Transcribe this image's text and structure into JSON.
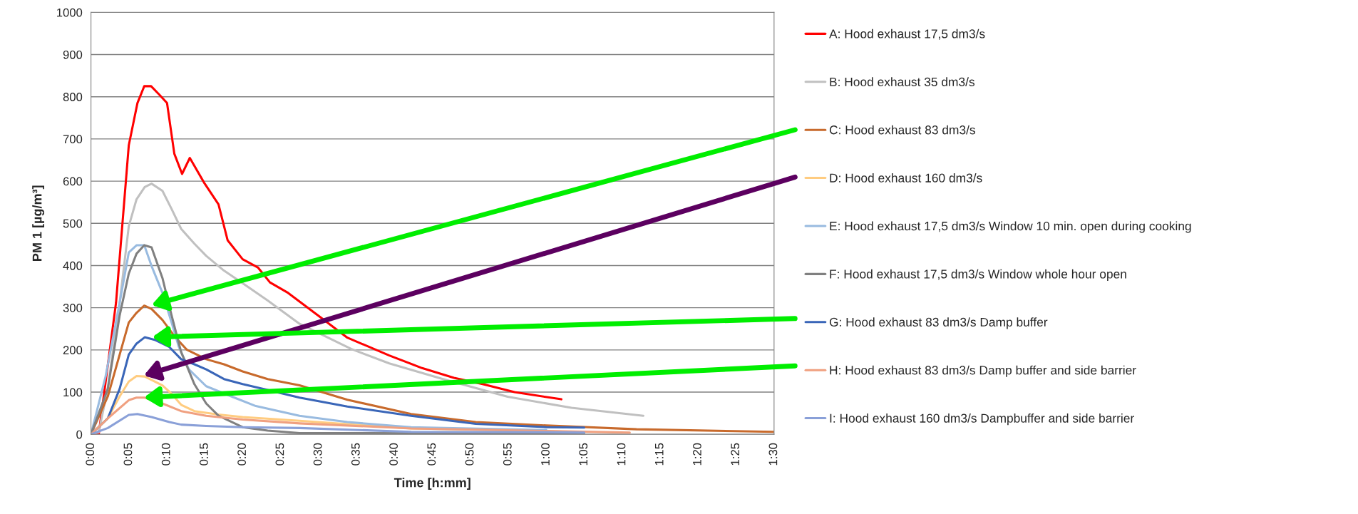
{
  "chart_data": {
    "type": "line",
    "xlabel": "Time [h:mm]",
    "ylabel": "PM 1 [µg/m³]",
    "xlim": [
      0,
      1.5
    ],
    "ylim": [
      0,
      1000
    ],
    "yticks": [
      0,
      100,
      200,
      300,
      400,
      500,
      600,
      700,
      800,
      900,
      1000
    ],
    "xticks": [
      {
        "value": 0,
        "label": "0:00"
      },
      {
        "value": 0.0833,
        "label": "0:05"
      },
      {
        "value": 0.1667,
        "label": "0:10"
      },
      {
        "value": 0.25,
        "label": "0:15"
      },
      {
        "value": 0.3333,
        "label": "0:20"
      },
      {
        "value": 0.4167,
        "label": "0:25"
      },
      {
        "value": 0.5,
        "label": "0:30"
      },
      {
        "value": 0.5833,
        "label": "0:35"
      },
      {
        "value": 0.6667,
        "label": "0:40"
      },
      {
        "value": 0.75,
        "label": "0:45"
      },
      {
        "value": 0.8333,
        "label": "0:50"
      },
      {
        "value": 0.9167,
        "label": "0:55"
      },
      {
        "value": 1.0,
        "label": "1:00"
      },
      {
        "value": 1.0833,
        "label": "1:05"
      },
      {
        "value": 1.1667,
        "label": "1:10"
      },
      {
        "value": 1.25,
        "label": "1:15"
      },
      {
        "value": 1.3333,
        "label": "1:20"
      },
      {
        "value": 1.4167,
        "label": "1:25"
      },
      {
        "value": 1.5,
        "label": "1:30"
      }
    ],
    "grid": "y",
    "legend": "right",
    "marker": "none",
    "line_style": "solid",
    "series": [
      {
        "name": "A: Hood exhaust 17,5 dm3/s",
        "color": "#ff0000",
        "x": [
          0,
          0.017,
          0.055,
          0.083,
          0.102,
          0.117,
          0.132,
          0.15,
          0.167,
          0.183,
          0.2,
          0.217,
          0.248,
          0.28,
          0.3,
          0.333,
          0.367,
          0.393,
          0.433,
          0.508,
          0.563,
          0.655,
          0.727,
          0.797,
          0.86,
          0.93,
          1.033
        ],
        "values": [
          0,
          0,
          312,
          685,
          785,
          825,
          825,
          805,
          785,
          665,
          617,
          655,
          597,
          545,
          460,
          415,
          395,
          360,
          335,
          274,
          229,
          187,
          157,
          134,
          119,
          100,
          83
        ]
      },
      {
        "name": "B: Hood exhaust 35 dm3/s",
        "color": "#c0c0c0",
        "x": [
          0,
          0.017,
          0.037,
          0.063,
          0.083,
          0.1,
          0.118,
          0.133,
          0.157,
          0.177,
          0.198,
          0.227,
          0.253,
          0.292,
          0.333,
          0.388,
          0.458,
          0.572,
          0.655,
          0.773,
          0.915,
          1.055,
          1.213
        ],
        "values": [
          0,
          5,
          110,
          312,
          493,
          557,
          586,
          594,
          577,
          534,
          487,
          452,
          423,
          388,
          358,
          317,
          262,
          202,
          168,
          131,
          89,
          63,
          44
        ]
      },
      {
        "name": "C: Hood exhaust 83 dm3/s",
        "color": "#c86a2c",
        "x": [
          0,
          0.037,
          0.083,
          0.1,
          0.117,
          0.133,
          0.157,
          0.183,
          0.21,
          0.253,
          0.292,
          0.333,
          0.388,
          0.458,
          0.563,
          0.703,
          0.845,
          1.0,
          1.198,
          1.5
        ],
        "values": [
          0,
          90,
          265,
          288,
          305,
          297,
          271,
          233,
          201,
          178,
          166,
          149,
          131,
          116,
          82,
          48,
          29,
          21,
          12,
          6
        ]
      },
      {
        "name": "D: Hood exhaust 160 dm3/s",
        "color": "#ffcc80",
        "x": [
          0,
          0.037,
          0.063,
          0.083,
          0.1,
          0.118,
          0.157,
          0.177,
          0.198,
          0.227,
          0.28,
          0.333,
          0.458,
          0.703,
          1.0,
          1.062
        ],
        "values": [
          0,
          38,
          90,
          125,
          138,
          137,
          116,
          96,
          70,
          55,
          47,
          41,
          32,
          14,
          8,
          5
        ]
      },
      {
        "name": "E: Hood exhaust 17,5 dm3/s Window 10 min. open during cooking",
        "color": "#99bbe0",
        "x": [
          0,
          0.032,
          0.063,
          0.083,
          0.1,
          0.117,
          0.133,
          0.157,
          0.177,
          0.193,
          0.215,
          0.253,
          0.308,
          0.362,
          0.458,
          0.563,
          0.703,
          1.0
        ],
        "values": [
          0,
          137,
          312,
          431,
          448,
          448,
          399,
          335,
          265,
          207,
          154,
          114,
          90,
          67,
          44,
          29,
          17,
          10
        ]
      },
      {
        "name": "F: Hood exhaust 17,5 dm3/s Window whole hour open",
        "color": "#808080",
        "x": [
          0,
          0.037,
          0.063,
          0.083,
          0.1,
          0.117,
          0.133,
          0.157,
          0.177,
          0.198,
          0.227,
          0.253,
          0.28,
          0.333,
          0.388,
          0.458,
          1.083
        ],
        "values": [
          0,
          108,
          282,
          381,
          428,
          448,
          443,
          370,
          282,
          195,
          119,
          73,
          44,
          17,
          9,
          3,
          2
        ]
      },
      {
        "name": "G: Hood exhaust 83 dm3/s Damp buffer",
        "color": "#3a66b8",
        "x": [
          0,
          0.037,
          0.063,
          0.083,
          0.1,
          0.118,
          0.14,
          0.172,
          0.198,
          0.227,
          0.253,
          0.292,
          0.333,
          0.388,
          0.458,
          0.563,
          0.703,
          0.845,
          1.0,
          1.083
        ],
        "values": [
          0,
          38,
          108,
          189,
          215,
          230,
          224,
          207,
          178,
          166,
          154,
          131,
          119,
          105,
          87,
          66,
          44,
          25,
          17,
          16
        ]
      },
      {
        "name": "H: Hood exhaust 83 dm3/s Damp buffer and side barrier",
        "color": "#f0a080",
        "x": [
          0,
          0.037,
          0.083,
          0.1,
          0.118,
          0.157,
          0.198,
          0.253,
          0.333,
          0.458,
          0.703,
          1.0,
          1.183
        ],
        "values": [
          0,
          38,
          81,
          87,
          87,
          73,
          55,
          44,
          35,
          26,
          14,
          8,
          4
        ]
      },
      {
        "name": "I: Hood exhaust 160 dm3/s Dampbuffer and side barrier",
        "color": "#8aa0d8",
        "x": [
          0,
          0.037,
          0.083,
          0.102,
          0.133,
          0.172,
          0.198,
          0.253,
          0.333,
          0.458,
          0.703,
          1.0,
          1.083
        ],
        "values": [
          0,
          15,
          46,
          48,
          41,
          29,
          23,
          20,
          17,
          15,
          6,
          5,
          4
        ]
      }
    ]
  }
}
